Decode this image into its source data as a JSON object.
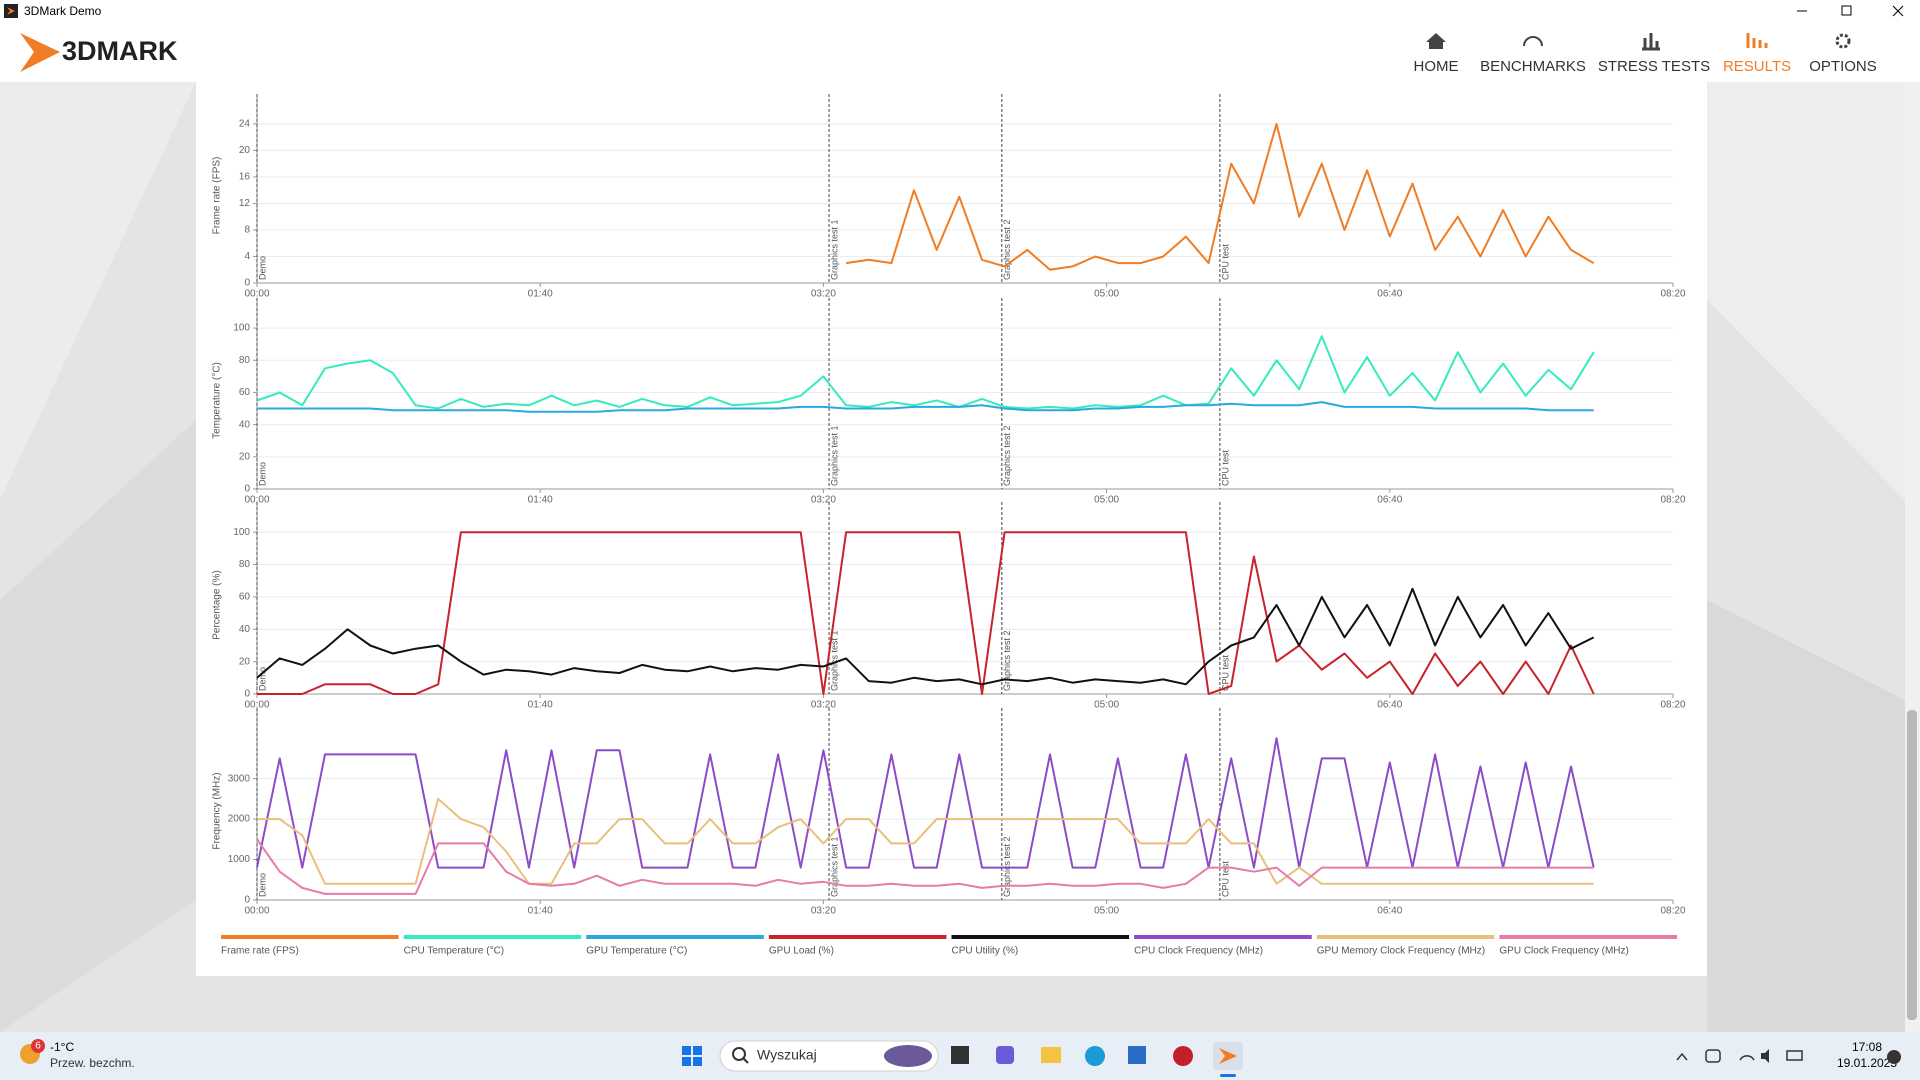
{
  "window": {
    "title": "3DMark Demo"
  },
  "header": {
    "logo": "3DMARK",
    "nav": [
      "HOME",
      "BENCHMARKS",
      "STRESS TESTS",
      "RESULTS",
      "OPTIONS"
    ]
  },
  "taskbar": {
    "temperature": "-1°C",
    "weather": "Przew. bezchm.",
    "badge": "6",
    "search": "Wyszukaj",
    "time": "17:08",
    "date": "19.01.2025"
  },
  "chart_data": [
    {
      "type": "line",
      "y_label": "Frame rate (FPS)",
      "ylim": [
        0,
        26.4
      ],
      "yticks": [
        0,
        4,
        8,
        12,
        16,
        20,
        24
      ],
      "xlim": [
        0,
        500
      ],
      "xticks": [
        {
          "value": 0,
          "label": "00:00"
        },
        {
          "value": 100,
          "label": "01:40"
        },
        {
          "value": 200,
          "label": "03:20"
        },
        {
          "value": 300,
          "label": "05:00"
        },
        {
          "value": 400,
          "label": "06:40"
        },
        {
          "value": 500,
          "label": "08:20"
        }
      ],
      "markers": [
        {
          "x": 0,
          "label": "Demo"
        },
        {
          "x": 202,
          "label": "Graphics test 1"
        },
        {
          "x": 263,
          "label": "Graphics test 2"
        },
        {
          "x": 340,
          "label": "CPU test"
        }
      ],
      "x": [
        0,
        8,
        16,
        24,
        32,
        40,
        48,
        56,
        64,
        72,
        80,
        88,
        96,
        104,
        112,
        120,
        128,
        136,
        144,
        152,
        160,
        168,
        176,
        184,
        192,
        200,
        208,
        216,
        224,
        232,
        240,
        248,
        256,
        264,
        272,
        280,
        288,
        296,
        304,
        312,
        320,
        328,
        336,
        344,
        352,
        360,
        368,
        376,
        384,
        392,
        400,
        408,
        416,
        424,
        432,
        440,
        448,
        456,
        464,
        472
      ],
      "series": [
        {
          "name": "Frame rate (FPS)",
          "color": "#f07c24",
          "values": [
            null,
            null,
            null,
            null,
            null,
            null,
            null,
            null,
            null,
            null,
            null,
            null,
            null,
            null,
            null,
            null,
            null,
            null,
            null,
            null,
            null,
            null,
            null,
            null,
            null,
            null,
            3,
            3.5,
            3,
            14,
            5,
            13,
            3.5,
            2.5,
            5,
            2,
            2.5,
            4,
            3,
            3,
            4,
            7,
            3,
            18,
            12,
            24,
            10,
            18,
            8,
            17,
            7,
            15,
            5,
            10,
            4,
            11,
            4,
            10,
            5,
            3
          ]
        }
      ]
    },
    {
      "type": "line",
      "y_label": "Temperature (°C)",
      "ylim": [
        0,
        110
      ],
      "yticks": [
        0,
        20,
        40,
        60,
        80,
        100
      ],
      "xlim": [
        0,
        500
      ],
      "xticks": [
        {
          "value": 0,
          "label": "00:00"
        },
        {
          "value": 100,
          "label": "01:40"
        },
        {
          "value": 200,
          "label": "03:20"
        },
        {
          "value": 300,
          "label": "05:00"
        },
        {
          "value": 400,
          "label": "06:40"
        },
        {
          "value": 500,
          "label": "08:20"
        }
      ],
      "markers": [
        {
          "x": 0,
          "label": "Demo"
        },
        {
          "x": 202,
          "label": "Graphics test 1"
        },
        {
          "x": 263,
          "label": "Graphics test 2"
        },
        {
          "x": 340,
          "label": "CPU test"
        }
      ],
      "x": [
        0,
        8,
        16,
        24,
        32,
        40,
        48,
        56,
        64,
        72,
        80,
        88,
        96,
        104,
        112,
        120,
        128,
        136,
        144,
        152,
        160,
        168,
        176,
        184,
        192,
        200,
        208,
        216,
        224,
        232,
        240,
        248,
        256,
        264,
        272,
        280,
        288,
        296,
        304,
        312,
        320,
        328,
        336,
        344,
        352,
        360,
        368,
        376,
        384,
        392,
        400,
        408,
        416,
        424,
        432,
        440,
        448,
        456,
        464,
        472
      ],
      "series": [
        {
          "name": "CPU Temperature (°C)",
          "color": "#34ebc0",
          "values": [
            55,
            60,
            52,
            75,
            78,
            80,
            72,
            52,
            50,
            56,
            51,
            53,
            52,
            58,
            52,
            55,
            51,
            56,
            52,
            51,
            57,
            52,
            53,
            54,
            58,
            70,
            52,
            51,
            54,
            52,
            55,
            51,
            56,
            51,
            50,
            51,
            50,
            52,
            51,
            52,
            58,
            52,
            53,
            75,
            58,
            80,
            62,
            95,
            60,
            82,
            58,
            72,
            55,
            85,
            60,
            78,
            58,
            74,
            62,
            85
          ]
        },
        {
          "name": "GPU Temperature (°C)",
          "color": "#29a9e0",
          "values": [
            50,
            50,
            50,
            50,
            50,
            50,
            49,
            49,
            49,
            49,
            49,
            49,
            48,
            48,
            48,
            48,
            49,
            49,
            49,
            50,
            50,
            50,
            50,
            50,
            51,
            51,
            50,
            50,
            50,
            51,
            51,
            51,
            52,
            50,
            49,
            49,
            49,
            50,
            50,
            51,
            51,
            52,
            52,
            53,
            52,
            52,
            52,
            54,
            51,
            51,
            51,
            51,
            50,
            50,
            50,
            50,
            50,
            49,
            49,
            49
          ]
        }
      ]
    },
    {
      "type": "line",
      "y_label": "Percentage (%)",
      "ylim": [
        0,
        110
      ],
      "yticks": [
        0,
        20,
        40,
        60,
        80,
        100
      ],
      "xlim": [
        0,
        500
      ],
      "xticks": [
        {
          "value": 0,
          "label": "00:00"
        },
        {
          "value": 100,
          "label": "01:40"
        },
        {
          "value": 200,
          "label": "03:20"
        },
        {
          "value": 300,
          "label": "05:00"
        },
        {
          "value": 400,
          "label": "06:40"
        },
        {
          "value": 500,
          "label": "08:20"
        }
      ],
      "markers": [
        {
          "x": 0,
          "label": "Demo"
        },
        {
          "x": 202,
          "label": "Graphics test 1"
        },
        {
          "x": 263,
          "label": "Graphics test 2"
        },
        {
          "x": 340,
          "label": "CPU test"
        }
      ],
      "x": [
        0,
        8,
        16,
        24,
        32,
        40,
        48,
        56,
        64,
        72,
        80,
        88,
        96,
        104,
        112,
        120,
        128,
        136,
        144,
        152,
        160,
        168,
        176,
        184,
        192,
        200,
        208,
        216,
        224,
        232,
        240,
        248,
        256,
        264,
        272,
        280,
        288,
        296,
        304,
        312,
        320,
        328,
        336,
        344,
        352,
        360,
        368,
        376,
        384,
        392,
        400,
        408,
        416,
        424,
        432,
        440,
        448,
        456,
        464,
        472
      ],
      "series": [
        {
          "name": "GPU Load (%)",
          "color": "#c8232b",
          "values": [
            0,
            0,
            0,
            6,
            6,
            6,
            0,
            0,
            6,
            100,
            100,
            100,
            100,
            100,
            100,
            100,
            100,
            100,
            100,
            100,
            100,
            100,
            100,
            100,
            100,
            0,
            100,
            100,
            100,
            100,
            100,
            100,
            0,
            100,
            100,
            100,
            100,
            100,
            100,
            100,
            100,
            100,
            0,
            5,
            85,
            20,
            30,
            15,
            25,
            10,
            20,
            0,
            25,
            5,
            20,
            0,
            20,
            0,
            30,
            0
          ]
        },
        {
          "name": "CPU Utility (%)",
          "color": "#111111",
          "values": [
            10,
            22,
            18,
            28,
            40,
            30,
            25,
            28,
            30,
            20,
            12,
            15,
            14,
            12,
            16,
            14,
            13,
            18,
            15,
            14,
            17,
            14,
            16,
            15,
            18,
            17,
            22,
            8,
            7,
            10,
            8,
            9,
            6,
            9,
            8,
            10,
            7,
            9,
            8,
            7,
            9,
            6,
            20,
            30,
            35,
            55,
            30,
            60,
            35,
            55,
            30,
            65,
            30,
            60,
            35,
            55,
            30,
            50,
            28,
            35
          ]
        }
      ]
    },
    {
      "type": "line",
      "y_label": "Frequency (MHz)",
      "ylim": [
        0,
        4400
      ],
      "yticks": [
        0,
        1000,
        2000,
        3000
      ],
      "xlim": [
        0,
        500
      ],
      "xticks": [
        {
          "value": 0,
          "label": "00:00"
        },
        {
          "value": 100,
          "label": "01:40"
        },
        {
          "value": 200,
          "label": "03:20"
        },
        {
          "value": 300,
          "label": "05:00"
        },
        {
          "value": 400,
          "label": "06:40"
        },
        {
          "value": 500,
          "label": "08:20"
        }
      ],
      "markers": [
        {
          "x": 0,
          "label": "Demo"
        },
        {
          "x": 202,
          "label": "Graphics test 1"
        },
        {
          "x": 263,
          "label": "Graphics test 2"
        },
        {
          "x": 340,
          "label": "CPU test"
        }
      ],
      "x": [
        0,
        8,
        16,
        24,
        32,
        40,
        48,
        56,
        64,
        72,
        80,
        88,
        96,
        104,
        112,
        120,
        128,
        136,
        144,
        152,
        160,
        168,
        176,
        184,
        192,
        200,
        208,
        216,
        224,
        232,
        240,
        248,
        256,
        264,
        272,
        280,
        288,
        296,
        304,
        312,
        320,
        328,
        336,
        344,
        352,
        360,
        368,
        376,
        384,
        392,
        400,
        408,
        416,
        424,
        432,
        440,
        448,
        456,
        464,
        472
      ],
      "series": [
        {
          "name": "CPU Clock Frequency (MHz)",
          "color": "#8c4bc8",
          "values": [
            800,
            3500,
            800,
            3600,
            3600,
            3600,
            3600,
            3600,
            800,
            800,
            800,
            3700,
            800,
            3700,
            800,
            3700,
            3700,
            800,
            800,
            800,
            3600,
            800,
            800,
            3600,
            800,
            3700,
            800,
            800,
            3600,
            800,
            800,
            3600,
            800,
            800,
            800,
            3600,
            800,
            800,
            3500,
            800,
            800,
            3600,
            800,
            3500,
            800,
            4000,
            800,
            3500,
            3500,
            800,
            3400,
            800,
            3600,
            800,
            3300,
            800,
            3400,
            800,
            3300,
            800
          ]
        },
        {
          "name": "GPU Memory Clock Frequency (MHz)",
          "color": "#e8c07a",
          "values": [
            2000,
            2000,
            1600,
            400,
            400,
            400,
            400,
            400,
            2500,
            2000,
            1800,
            1200,
            400,
            400,
            1400,
            1400,
            2000,
            2000,
            1400,
            1400,
            2000,
            1400,
            1400,
            1800,
            2000,
            1400,
            2000,
            2000,
            1400,
            1400,
            2000,
            2000,
            2000,
            2000,
            2000,
            2000,
            2000,
            2000,
            2000,
            1400,
            1400,
            1400,
            2000,
            1400,
            1400,
            400,
            800,
            400,
            400,
            400,
            400,
            400,
            400,
            400,
            400,
            400,
            400,
            400,
            400,
            400
          ]
        },
        {
          "name": "GPU Clock Frequency (MHz)",
          "color": "#e87aa8",
          "values": [
            1500,
            700,
            300,
            150,
            150,
            150,
            150,
            150,
            1400,
            1400,
            1400,
            700,
            400,
            350,
            400,
            600,
            350,
            500,
            400,
            400,
            400,
            400,
            350,
            500,
            400,
            450,
            350,
            350,
            400,
            350,
            350,
            400,
            300,
            350,
            350,
            400,
            350,
            350,
            400,
            400,
            300,
            400,
            800,
            800,
            700,
            800,
            350,
            800,
            800,
            800,
            800,
            800,
            800,
            800,
            800,
            800,
            800,
            800,
            800,
            800
          ]
        }
      ]
    }
  ]
}
